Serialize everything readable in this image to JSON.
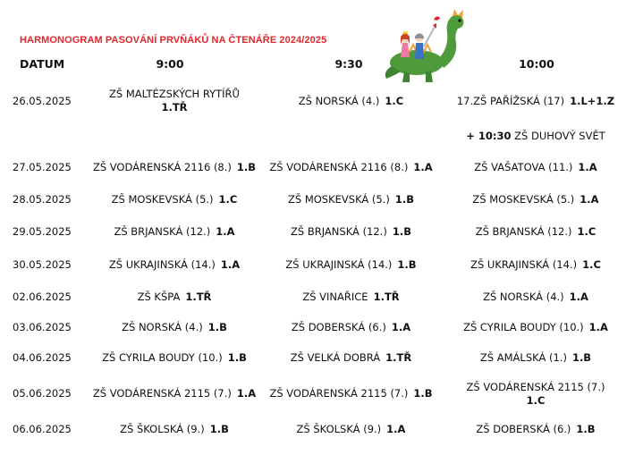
{
  "title": "HARMONOGRAM PASOVÁNÍ PRVŇÁKŮ NA ČTENÁŘE 2024/2025",
  "colors": {
    "title": "#e3262b",
    "dragon": "#4f9a3a",
    "pink": "#f07aa0"
  },
  "headers": {
    "date": "DATUM",
    "t1": "9:00",
    "t2": "9:30",
    "t3": "10:00"
  },
  "rows": [
    {
      "date": "26.05.2025",
      "c1": {
        "school": "ZŠ MALTÉZSKÝCH RYTÍŘŮ",
        "cls": "1.TŘ"
      },
      "c2": {
        "school": "ZŠ NORSKÁ (4.)",
        "cls": "1.C"
      },
      "c3": {
        "school": "17.ZŠ PAŘÍŽSKÁ (17)",
        "cls": "1.L+1.Z"
      }
    },
    {
      "date": "27.05.2025",
      "c1": {
        "school": "ZŠ VODÁRENSKÁ 2116 (8.)",
        "cls": "1.B"
      },
      "c2": {
        "school": "ZŠ VODÁRENSKÁ 2116 (8.)",
        "cls": "1.A"
      },
      "c3": {
        "school": "ZŠ VAŠATOVA (11.)",
        "cls": "1.A"
      }
    },
    {
      "date": "28.05.2025",
      "c1": {
        "school": "ZŠ MOSKEVSKÁ (5.)",
        "cls": "1.C"
      },
      "c2": {
        "school": "ZŠ MOSKEVSKÁ (5.)",
        "cls": "1.B"
      },
      "c3": {
        "school": "ZŠ MOSKEVSKÁ (5.)",
        "cls": "1.A"
      }
    },
    {
      "date": "29.05.2025",
      "c1": {
        "school": "ZŠ BRJANSKÁ (12.)",
        "cls": "1.A"
      },
      "c2": {
        "school": "ZŠ BRJANSKÁ (12.)",
        "cls": "1.B"
      },
      "c3": {
        "school": "ZŠ BRJANSKÁ (12.)",
        "cls": "1.C"
      }
    },
    {
      "date": "30.05.2025",
      "c1": {
        "school": "ZŠ UKRAJINSKÁ (14.)",
        "cls": "1.A"
      },
      "c2": {
        "school": "ZŠ UKRAJINSKÁ (14.)",
        "cls": "1.B"
      },
      "c3": {
        "school": "ZŠ UKRAJINSKÁ (14.)",
        "cls": "1.C"
      }
    },
    {
      "date": "02.06.2025",
      "c1": {
        "school": "ZŠ KŠPA",
        "cls": "1.TŘ"
      },
      "c2": {
        "school": "ZŠ VINAŘICE",
        "cls": "1.TŘ"
      },
      "c3": {
        "school": "ZŠ NORSKÁ (4.)",
        "cls": "1.A"
      }
    },
    {
      "date": "03.06.2025",
      "c1": {
        "school": "ZŠ NORSKÁ (4.)",
        "cls": "1.B"
      },
      "c2": {
        "school": "ZŠ DOBERSKÁ (6.)",
        "cls": "1.A"
      },
      "c3": {
        "school": "ZŠ CYRILA BOUDY (10.)",
        "cls": "1.A"
      }
    },
    {
      "date": "04.06.2025",
      "c1": {
        "school": "ZŠ CYRILA BOUDY (10.)",
        "cls": "1.B"
      },
      "c2": {
        "school": "ZŠ VELKÁ DOBRÁ",
        "cls": "1.TŘ"
      },
      "c3": {
        "school": "ZŠ AMÁLSKÁ (1.)",
        "cls": "1.B"
      }
    },
    {
      "date": "05.06.2025",
      "c1": {
        "school": "ZŠ VODÁRENSKÁ 2115 (7.)",
        "cls": "1.A"
      },
      "c2": {
        "school": "ZŠ VODÁRENSKÁ 2115 (7.)",
        "cls": "1.B"
      },
      "c3": {
        "school": "ZŠ VODÁRENSKÁ 2115 (7.)",
        "cls": "1.C"
      }
    },
    {
      "date": "06.06.2025",
      "c1": {
        "school": "ZŠ ŠKOLSKÁ (9.)",
        "cls": "1.B"
      },
      "c2": {
        "school": "ZŠ ŠKOLSKÁ (9.)",
        "cls": "1.A"
      },
      "c3": {
        "school": "ZŠ DOBERSKÁ (6.)",
        "cls": "1.B"
      }
    }
  ],
  "extra_row": {
    "time": "+ 10:30",
    "school": "ZŠ DUHOVÝ SVĚT"
  },
  "illustration_icon": "knight-and-dragon-illustration"
}
